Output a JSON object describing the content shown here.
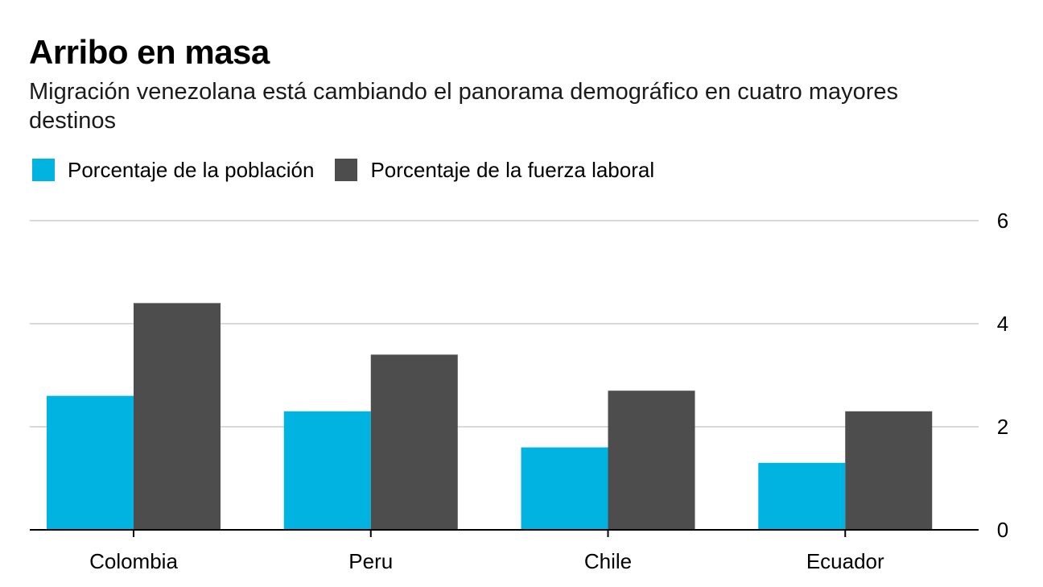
{
  "title": "Arribo en masa",
  "subtitle": "Migración venezolana está cambiando el panorama demográfico en cuatro mayores destinos",
  "colors": {
    "poblacion": "#00b3e0",
    "fuerza_laboral": "#4d4d4d",
    "grid": "#d9d9d9",
    "axis": "#000000"
  },
  "legend": [
    {
      "label": "Porcentaje de la población",
      "color": "#00b3e0"
    },
    {
      "label": "Porcentaje de la fuerza laboral",
      "color": "#4d4d4d"
    }
  ],
  "chart_data": {
    "type": "bar",
    "title": "Arribo en masa",
    "subtitle": "Migración venezolana está cambiando el panorama demográfico en cuatro mayores destinos",
    "categories": [
      "Colombia",
      "Peru",
      "Chile",
      "Ecuador"
    ],
    "series": [
      {
        "name": "Porcentaje de la población",
        "color": "#00b3e0",
        "values": [
          2.6,
          2.3,
          1.6,
          1.3
        ]
      },
      {
        "name": "Porcentaje de la fuerza laboral",
        "color": "#4d4d4d",
        "values": [
          4.4,
          3.4,
          2.7,
          2.3
        ]
      }
    ],
    "ylim": [
      0,
      6
    ],
    "yticks": [
      0,
      2,
      4,
      6
    ],
    "y_axis_side": "right",
    "grid": true,
    "legend_position": "top-left",
    "xlabel": "",
    "ylabel": ""
  }
}
